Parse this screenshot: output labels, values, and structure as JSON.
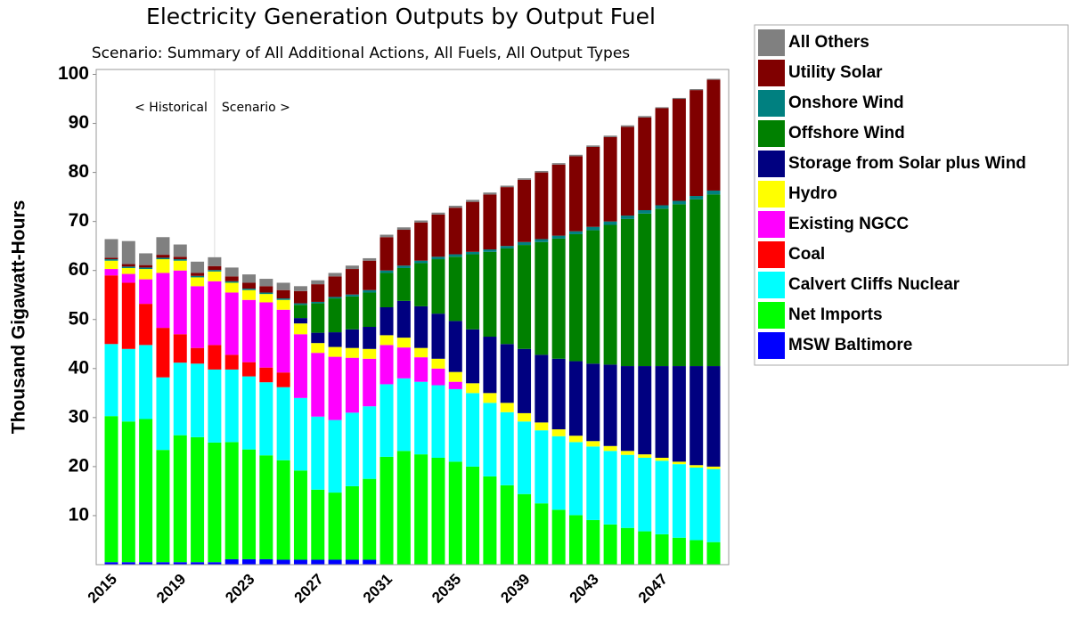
{
  "chart_data": {
    "type": "stacked_bar",
    "title": "Electricity Generation Outputs by Output Fuel",
    "subtitle": "Scenario: Summary of All Additional Actions, All Fuels, All Output Types",
    "ylabel": "Thousand Gigawatt-Hours",
    "annotations": [
      "< Historical",
      "Scenario >"
    ],
    "categories": [
      "2015",
      null,
      null,
      null,
      "2019",
      null,
      null,
      null,
      "2023",
      null,
      null,
      null,
      "2027",
      null,
      null,
      null,
      "2031",
      null,
      null,
      null,
      "2035",
      null,
      null,
      null,
      "2039",
      null,
      null,
      null,
      "2043",
      null,
      null,
      null,
      "2047",
      null,
      null,
      null
    ],
    "ylim": [
      0,
      101
    ],
    "yticks": [
      10,
      20,
      30,
      40,
      50,
      60,
      70,
      80,
      90,
      100
    ],
    "legend": "right",
    "series": [
      {
        "name": "MSW Baltimore",
        "color": "#0000ff",
        "values": [
          0.5,
          0.5,
          0.5,
          0.5,
          0.5,
          0.5,
          0.5,
          1.1,
          1.1,
          1.1,
          1,
          1,
          1,
          1,
          1,
          1,
          0,
          0,
          0,
          0,
          0,
          0,
          0,
          0,
          0,
          0,
          0,
          0,
          0,
          0,
          0,
          0,
          0,
          0,
          0,
          0
        ]
      },
      {
        "name": "Net Imports",
        "color": "#00ff00",
        "values": [
          29.8,
          28.7,
          29.2,
          22.9,
          25.9,
          25.5,
          24.4,
          23.9,
          22.4,
          21.2,
          20.3,
          18.2,
          14.3,
          13.7,
          15,
          16.5,
          22,
          23.2,
          22.5,
          21.8,
          21,
          20,
          18,
          16.2,
          14.4,
          12.5,
          11.2,
          10.1,
          9.1,
          8.2,
          7.5,
          6.8,
          6.2,
          5.5,
          5,
          4.6
        ]
      },
      {
        "name": "Calvert Cliffs Nuclear",
        "color": "#00ffff",
        "values": [
          14.7,
          14.8,
          15.1,
          14.8,
          14.8,
          15,
          14.9,
          14.8,
          14.9,
          14.9,
          14.9,
          14.8,
          14.9,
          14.8,
          15,
          14.8,
          14.8,
          14.8,
          14.8,
          14.8,
          14.8,
          15,
          15,
          14.9,
          14.8,
          14.9,
          15,
          14.9,
          15,
          15,
          14.9,
          15,
          15,
          15,
          14.8,
          14.9
        ]
      },
      {
        "name": "Coal",
        "color": "#ff0000",
        "values": [
          14,
          13.5,
          8.4,
          10.1,
          5.8,
          3.2,
          5,
          3,
          2.9,
          3,
          3,
          0,
          0,
          0,
          0,
          0,
          0,
          0,
          0,
          0,
          0,
          0,
          0,
          0,
          0,
          0,
          0,
          0,
          0,
          0,
          0,
          0,
          0,
          0,
          0,
          0
        ]
      },
      {
        "name": "Existing NGCC",
        "color": "#ff00ff",
        "values": [
          1.3,
          1.8,
          5,
          11.2,
          13,
          12.6,
          13,
          12.7,
          12.7,
          13.3,
          12.8,
          13,
          13,
          12.9,
          11.2,
          9.7,
          8,
          6.3,
          5,
          3.4,
          1.5,
          0,
          0,
          0,
          0,
          0,
          0,
          0,
          0,
          0,
          0,
          0,
          0,
          0,
          0,
          0
        ]
      },
      {
        "name": "Hydro",
        "color": "#ffff00",
        "values": [
          1.7,
          1.2,
          2.1,
          2.8,
          2,
          1.8,
          2,
          2,
          2,
          1.7,
          2,
          2.2,
          2,
          2,
          2,
          2,
          2,
          2,
          1.9,
          2,
          2,
          2,
          2,
          1.9,
          1.7,
          1.6,
          1.4,
          1.3,
          1.1,
          1,
          0.8,
          0.7,
          0.6,
          0.5,
          0.5,
          0.5
        ]
      },
      {
        "name": "Storage from Solar plus Wind",
        "color": "#000080",
        "values": [
          0,
          0,
          0,
          0,
          0,
          0,
          0,
          0,
          0,
          0,
          0,
          1.1,
          2.1,
          3,
          3.8,
          4.5,
          5.7,
          7.5,
          8.5,
          9.2,
          10.4,
          11,
          11.5,
          12,
          13.1,
          13.8,
          14.4,
          15.2,
          15.8,
          16.6,
          17.3,
          18,
          18.7,
          19.5,
          20.2,
          20.5
        ]
      },
      {
        "name": "Offshore Wind",
        "color": "#008000",
        "values": [
          0,
          0,
          0,
          0,
          0,
          0,
          0,
          0,
          0,
          0,
          0,
          2.7,
          6,
          6.9,
          6.7,
          7,
          7,
          6.7,
          8.8,
          11.1,
          13.1,
          15.3,
          17.3,
          19.5,
          21.2,
          23,
          24.5,
          25.9,
          27.2,
          28.5,
          30,
          31.1,
          32.1,
          33,
          34,
          35
        ]
      },
      {
        "name": "Onshore Wind",
        "color": "#008080",
        "values": [
          0.3,
          0.3,
          0.3,
          0.3,
          0.3,
          0.3,
          0.3,
          0.3,
          0.3,
          0.3,
          0.3,
          0.3,
          0.3,
          0.3,
          0.4,
          0.5,
          0.5,
          0.5,
          0.5,
          0.5,
          0.5,
          0.5,
          0.5,
          0.5,
          0.6,
          0.6,
          0.6,
          0.6,
          0.7,
          0.7,
          0.7,
          0.7,
          0.7,
          0.7,
          0.7,
          0.8
        ]
      },
      {
        "name": "Utility Solar",
        "color": "#800000",
        "values": [
          0.3,
          0.5,
          0.5,
          0.6,
          0.5,
          0.6,
          0.8,
          1,
          1.2,
          1.3,
          1.7,
          2.5,
          3.6,
          4.2,
          5.2,
          6,
          6.8,
          7.3,
          7.8,
          8.6,
          9.5,
          10.2,
          11.2,
          12,
          12.7,
          13.6,
          14.5,
          15.3,
          16.3,
          17.2,
          18.1,
          18.9,
          19.8,
          20.8,
          21.6,
          22.6
        ]
      },
      {
        "name": "All Others",
        "color": "#808080",
        "values": [
          3.8,
          4.7,
          2.4,
          3.6,
          2.5,
          2.3,
          1.8,
          1.8,
          1.7,
          1.5,
          1.5,
          1,
          0.8,
          0.7,
          0.7,
          0.5,
          0.5,
          0.5,
          0.4,
          0.4,
          0.4,
          0.4,
          0.4,
          0.3,
          0.3,
          0.3,
          0.3,
          0.3,
          0.3,
          0.3,
          0.3,
          0.3,
          0.2,
          0.2,
          0.2,
          0.2
        ]
      }
    ]
  }
}
